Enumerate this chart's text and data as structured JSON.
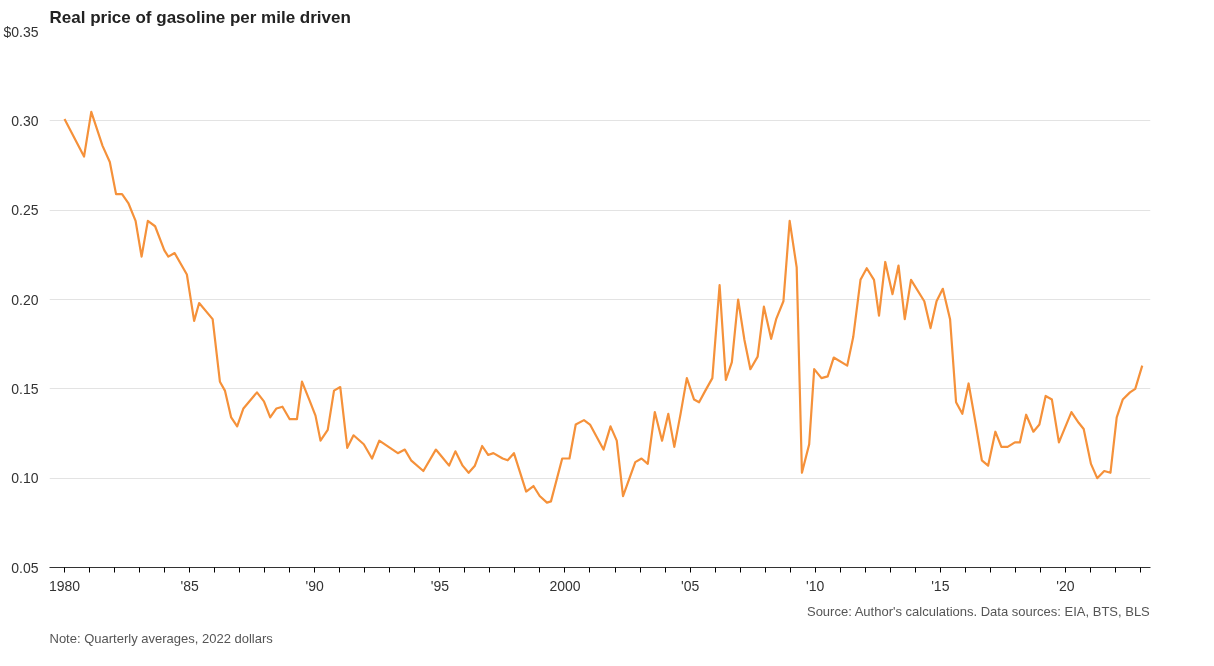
{
  "chart_data": {
    "type": "line",
    "title": "Real price of gasoline per mile driven",
    "xlim": [
      1979.4,
      2023.4
    ],
    "ylim": [
      0.05,
      0.35
    ],
    "xticks": [
      {
        "value": 1980,
        "label": "1980"
      },
      {
        "value": 1981,
        "label": null
      },
      {
        "value": 1982,
        "label": null
      },
      {
        "value": 1983,
        "label": null
      },
      {
        "value": 1984,
        "label": null
      },
      {
        "value": 1985,
        "label": "'85"
      },
      {
        "value": 1986,
        "label": null
      },
      {
        "value": 1987,
        "label": null
      },
      {
        "value": 1988,
        "label": null
      },
      {
        "value": 1989,
        "label": null
      },
      {
        "value": 1990,
        "label": "'90"
      },
      {
        "value": 1991,
        "label": null
      },
      {
        "value": 1992,
        "label": null
      },
      {
        "value": 1993,
        "label": null
      },
      {
        "value": 1994,
        "label": null
      },
      {
        "value": 1995,
        "label": "'95"
      },
      {
        "value": 1996,
        "label": null
      },
      {
        "value": 1997,
        "label": null
      },
      {
        "value": 1998,
        "label": null
      },
      {
        "value": 1999,
        "label": null
      },
      {
        "value": 2000,
        "label": "2000"
      },
      {
        "value": 2001,
        "label": null
      },
      {
        "value": 2002,
        "label": null
      },
      {
        "value": 2003,
        "label": null
      },
      {
        "value": 2004,
        "label": null
      },
      {
        "value": 2005,
        "label": "'05"
      },
      {
        "value": 2006,
        "label": null
      },
      {
        "value": 2007,
        "label": null
      },
      {
        "value": 2008,
        "label": null
      },
      {
        "value": 2009,
        "label": null
      },
      {
        "value": 2010,
        "label": "'10"
      },
      {
        "value": 2011,
        "label": null
      },
      {
        "value": 2012,
        "label": null
      },
      {
        "value": 2013,
        "label": null
      },
      {
        "value": 2014,
        "label": null
      },
      {
        "value": 2015,
        "label": "'15"
      },
      {
        "value": 2016,
        "label": null
      },
      {
        "value": 2017,
        "label": null
      },
      {
        "value": 2018,
        "label": null
      },
      {
        "value": 2019,
        "label": null
      },
      {
        "value": 2020,
        "label": "'20"
      },
      {
        "value": 2021,
        "label": null
      },
      {
        "value": 2022,
        "label": null
      },
      {
        "value": 2023,
        "label": null
      }
    ],
    "yticks": [
      {
        "value": 0.05,
        "label": "0.05"
      },
      {
        "value": 0.1,
        "label": "0.10"
      },
      {
        "value": 0.15,
        "label": "0.15"
      },
      {
        "value": 0.2,
        "label": "0.20"
      },
      {
        "value": 0.25,
        "label": "0.25"
      },
      {
        "value": 0.3,
        "label": "0.30"
      },
      {
        "value": 0.35,
        "label": "$0.35"
      }
    ],
    "grid": "y",
    "series": [
      {
        "color": "#f5913a",
        "x": [
          1980.0,
          1980.78,
          1981.07,
          1981.52,
          1981.81,
          1982.06,
          1982.3,
          1982.55,
          1982.84,
          1983.08,
          1983.33,
          1983.62,
          1983.99,
          1984.15,
          1984.4,
          1984.89,
          1985.18,
          1985.38,
          1985.92,
          1986.21,
          1986.41,
          1986.66,
          1986.9,
          1987.15,
          1987.69,
          1987.97,
          1988.22,
          1988.47,
          1988.71,
          1989.0,
          1989.29,
          1989.49,
          1989.78,
          1990.03,
          1990.23,
          1990.52,
          1990.77,
          1991.02,
          1991.3,
          1991.55,
          1991.96,
          1992.29,
          1992.58,
          1993.32,
          1993.6,
          1993.85,
          1994.34,
          1994.84,
          1995.08,
          1995.37,
          1995.62,
          1995.91,
          1996.15,
          1996.4,
          1996.69,
          1996.93,
          1997.14,
          1997.51,
          1997.71,
          1997.96,
          1998.45,
          1998.74,
          1998.99,
          1999.28,
          1999.44,
          1999.89,
          2000.18,
          2000.43,
          2000.76,
          2001.0,
          2001.54,
          2001.82,
          2002.07,
          2002.32,
          2002.81,
          2003.06,
          2003.31,
          2003.59,
          2003.88,
          2004.13,
          2004.37,
          2004.62,
          2004.87,
          2005.16,
          2005.36,
          2005.61,
          2005.89,
          2006.18,
          2006.43,
          2006.67,
          2006.92,
          2007.17,
          2007.41,
          2007.7,
          2007.95,
          2008.24,
          2008.44,
          2008.73,
          2008.98,
          2009.26,
          2009.47,
          2009.76,
          2009.96,
          2010.25,
          2010.5,
          2010.74,
          2011.28,
          2011.52,
          2011.81,
          2012.06,
          2012.35,
          2012.55,
          2012.8,
          2013.09,
          2013.33,
          2013.58,
          2013.83,
          2014.36,
          2014.61,
          2014.85,
          2015.1,
          2015.39,
          2015.63,
          2015.88,
          2016.13,
          2016.42,
          2016.66,
          2016.91,
          2017.2,
          2017.44,
          2017.69,
          2017.98,
          2018.18,
          2018.43,
          2018.72,
          2018.96,
          2019.21,
          2019.46,
          2019.74,
          2020.24,
          2020.53,
          2020.73,
          2021.02,
          2021.27,
          2021.55,
          2021.8,
          2022.05,
          2022.29,
          2022.58,
          2022.79,
          2023.07
        ],
        "values": [
          0.301,
          0.28,
          0.305,
          0.286,
          0.277,
          0.259,
          0.259,
          0.254,
          0.244,
          0.224,
          0.244,
          0.241,
          0.2275,
          0.224,
          0.226,
          0.214,
          0.188,
          0.198,
          0.189,
          0.154,
          0.149,
          0.134,
          0.129,
          0.139,
          0.148,
          0.143,
          0.134,
          0.139,
          0.14,
          0.133,
          0.133,
          0.154,
          0.144,
          0.135,
          0.121,
          0.127,
          0.149,
          0.151,
          0.117,
          0.124,
          0.119,
          0.111,
          0.121,
          0.114,
          0.116,
          0.11,
          0.104,
          0.116,
          0.112,
          0.107,
          0.115,
          0.107,
          0.103,
          0.107,
          0.118,
          0.113,
          0.114,
          0.111,
          0.11,
          0.114,
          0.0925,
          0.0956,
          0.09,
          0.0863,
          0.087,
          0.111,
          0.111,
          0.13,
          0.1325,
          0.13,
          0.116,
          0.129,
          0.121,
          0.09,
          0.109,
          0.111,
          0.108,
          0.137,
          0.121,
          0.136,
          0.1175,
          0.136,
          0.156,
          0.144,
          0.1425,
          0.149,
          0.156,
          0.208,
          0.155,
          0.165,
          0.2,
          0.1775,
          0.161,
          0.168,
          0.196,
          0.178,
          0.189,
          0.199,
          0.244,
          0.218,
          0.103,
          0.119,
          0.161,
          0.156,
          0.157,
          0.1675,
          0.163,
          0.179,
          0.211,
          0.2175,
          0.211,
          0.191,
          0.221,
          0.203,
          0.219,
          0.189,
          0.211,
          0.199,
          0.184,
          0.199,
          0.206,
          0.189,
          0.1425,
          0.136,
          0.153,
          0.13,
          0.11,
          0.107,
          0.126,
          0.1175,
          0.1175,
          0.12,
          0.12,
          0.1355,
          0.126,
          0.13,
          0.146,
          0.144,
          0.12,
          0.137,
          0.131,
          0.1275,
          0.108,
          0.1,
          0.104,
          0.103,
          0.134,
          0.144,
          0.148,
          0.15,
          0.163
        ]
      }
    ],
    "annotations": [
      "Note: Quarterly averages, 2022 dollars",
      "Source: Author's calculations. Data sources: EIA, BTS, BLS"
    ]
  }
}
